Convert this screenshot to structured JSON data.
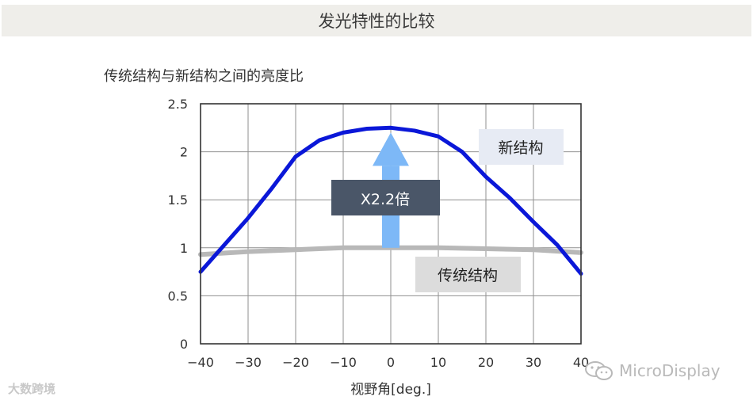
{
  "banner": {
    "title": "发光特性的比较"
  },
  "chart_data": {
    "type": "line",
    "title": "传统结构与新结构之间的亮度比",
    "xlabel": "视野角[deg.]",
    "ylabel": "",
    "xlim": [
      -40,
      40
    ],
    "ylim": [
      0,
      2.5
    ],
    "x_ticks": [
      -40,
      -30,
      -20,
      -10,
      0,
      10,
      20,
      30,
      40
    ],
    "x_tick_labels": [
      "−40",
      "−30",
      "−20",
      "−10",
      "0",
      "10",
      "20",
      "30",
      "40"
    ],
    "y_ticks": [
      0,
      0.5,
      1,
      1.5,
      2,
      2.5
    ],
    "y_tick_labels": [
      "0",
      "0.5",
      "1",
      "1.5",
      "2",
      "2.5"
    ],
    "grid": true,
    "series": [
      {
        "name": "新结构",
        "color": "#0a17d8",
        "x": [
          -40,
          -35,
          -30,
          -25,
          -20,
          -15,
          -10,
          -5,
          0,
          5,
          10,
          15,
          20,
          25,
          30,
          35,
          40
        ],
        "y": [
          0.75,
          1.03,
          1.31,
          1.62,
          1.95,
          2.12,
          2.2,
          2.24,
          2.25,
          2.22,
          2.16,
          2.0,
          1.74,
          1.52,
          1.27,
          1.03,
          0.73
        ]
      },
      {
        "name": "传统结构",
        "color": "#b8b8b8",
        "x": [
          -40,
          -30,
          -20,
          -10,
          0,
          10,
          20,
          30,
          40
        ],
        "y": [
          0.93,
          0.96,
          0.98,
          1.0,
          1.0,
          1.0,
          0.99,
          0.98,
          0.95
        ]
      }
    ],
    "annotations": {
      "ratio_label": "X2.2倍",
      "arrow_color": "#7db8f7",
      "ratio_box_color": "#4a5668",
      "new_label_box_color": "#e7ebf4",
      "old_label_box_color": "#dcdcdc"
    }
  },
  "watermarks": {
    "left_text": "大数跨境",
    "right_text": "MicroDisplay",
    "right_icon": "wechat-icon"
  }
}
